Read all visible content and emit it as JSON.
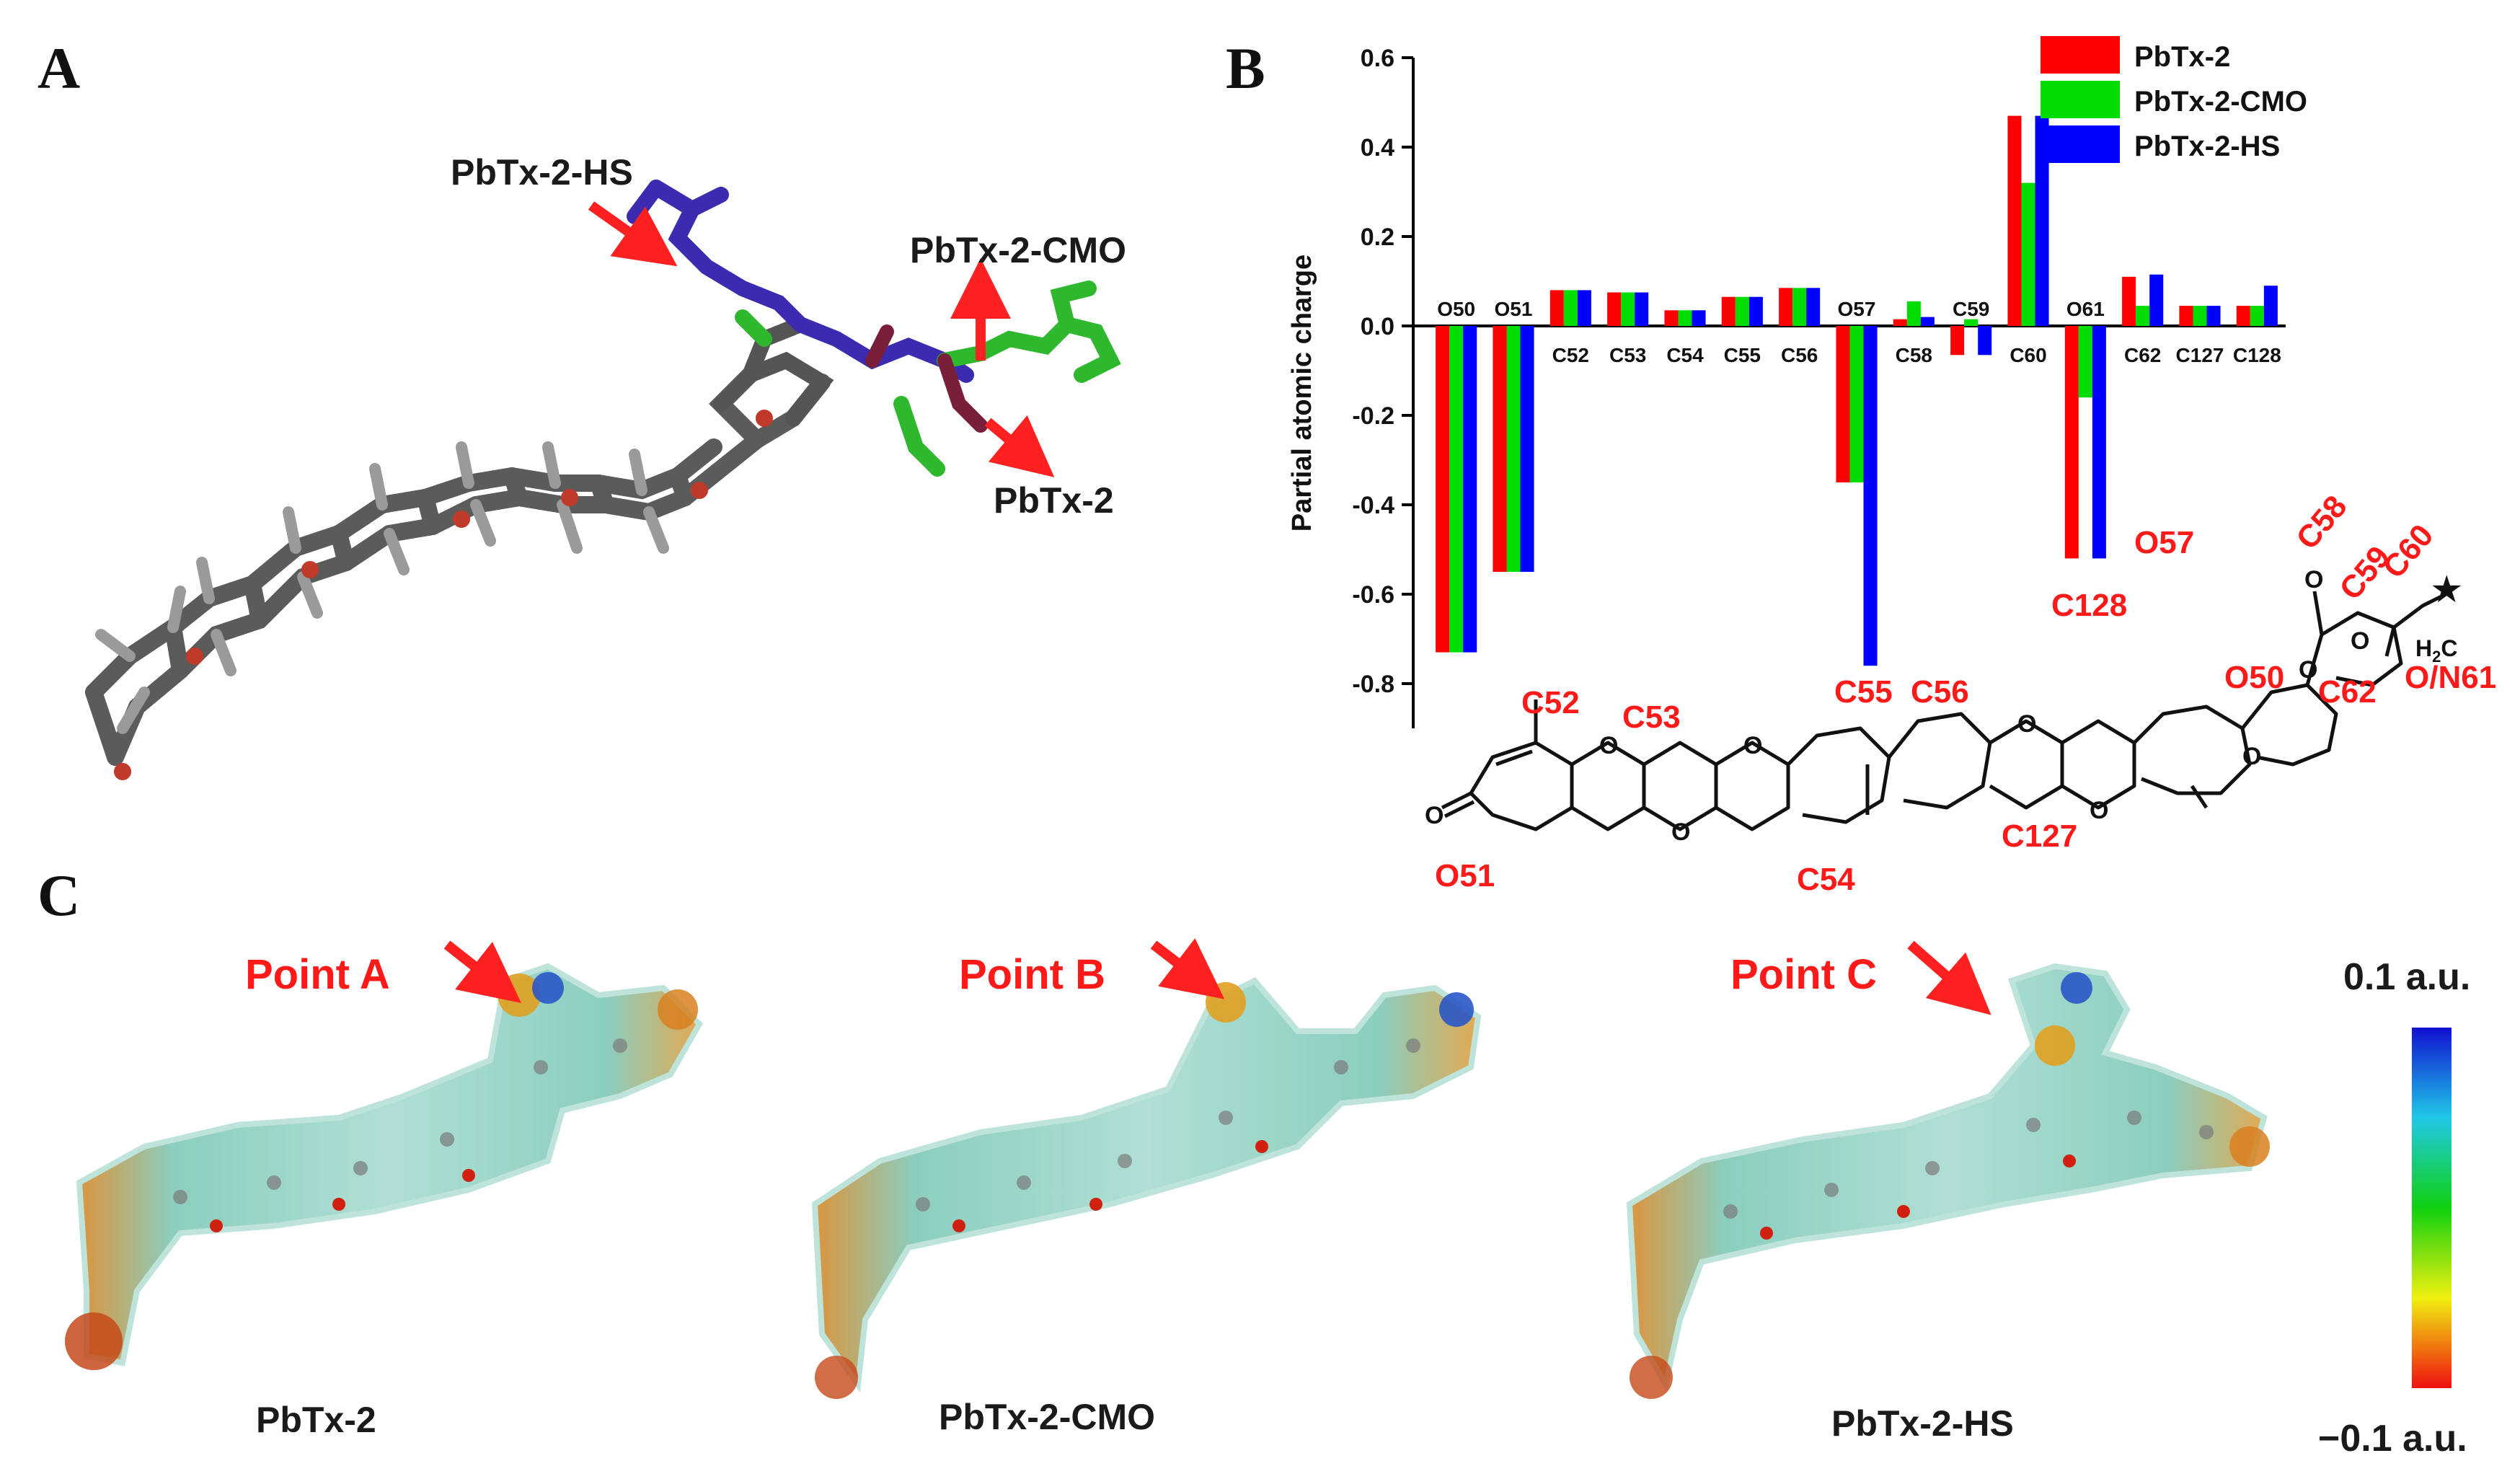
{
  "panels": {
    "a": {
      "letter": "A"
    },
    "b": {
      "letter": "B"
    },
    "c": {
      "letter": "C"
    }
  },
  "panel_a": {
    "labels": [
      "PbTx-2-HS",
      "PbTx-2-CMO",
      "PbTx-2"
    ],
    "colors": {
      "hs": "#3a2bb0",
      "cmo": "#2eb82e",
      "base": "#555555",
      "oxygen": "#c0392b"
    }
  },
  "chart_data": {
    "type": "bar",
    "categories": [
      "O50",
      "O51",
      "C52",
      "C53",
      "C54",
      "C55",
      "C56",
      "O57",
      "C58",
      "C59",
      "C60",
      "O61",
      "C62",
      "C127",
      "C128"
    ],
    "series": [
      {
        "name": "PbTx-2",
        "color": "#ff0000",
        "values": [
          -0.73,
          -0.55,
          0.08,
          0.075,
          0.035,
          0.065,
          0.085,
          -0.35,
          0.015,
          -0.065,
          0.47,
          -0.52,
          0.11,
          0.045,
          0.045
        ]
      },
      {
        "name": "PbTx-2-CMO",
        "color": "#00dd00",
        "values": [
          -0.73,
          -0.55,
          0.08,
          0.075,
          0.035,
          0.065,
          0.085,
          -0.35,
          0.055,
          0.015,
          0.32,
          -0.16,
          0.045,
          0.045,
          0.045
        ]
      },
      {
        "name": "PbTx-2-HS",
        "color": "#0000ff",
        "values": [
          -0.73,
          -0.55,
          0.08,
          0.075,
          0.035,
          0.065,
          0.085,
          -0.76,
          0.02,
          -0.065,
          0.47,
          -0.52,
          0.115,
          0.045,
          0.09
        ]
      }
    ],
    "ylabel": "Partial atomic charge",
    "ylim": [
      -0.9,
      0.6
    ],
    "yticks": [
      -0.8,
      -0.6,
      -0.4,
      -0.2,
      0.0,
      0.2,
      0.4,
      0.6
    ],
    "ytick_labels": [
      "-0.8",
      "-0.6",
      "-0.4",
      "-0.2",
      "0.0",
      "0.2",
      "0.4",
      "0.6"
    ],
    "legend_position": "top-right"
  },
  "structure_labels": [
    "C52",
    "C53",
    "C55",
    "C56",
    "O57",
    "C58",
    "C59",
    "C60",
    "C128",
    "O50",
    "C62",
    "O/N61",
    "C127",
    "O51",
    "C54"
  ],
  "structure_glyphs": {
    "h2c": "H",
    "h2c_sub": "2",
    "h2c_c": "C",
    "o": "O",
    "star": "★"
  },
  "panel_c": {
    "molecules": [
      {
        "point": "Point A",
        "name": "PbTx-2"
      },
      {
        "point": "Point B",
        "name": "PbTx-2-CMO"
      },
      {
        "point": "Point C",
        "name": "PbTx-2-HS"
      }
    ],
    "colorbar": {
      "max_label": "0.1 a.u.",
      "min_label": "−0.1 a.u."
    }
  }
}
